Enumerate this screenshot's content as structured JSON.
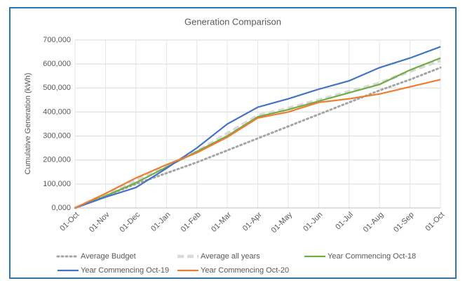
{
  "chart_data": {
    "type": "line",
    "title": "Generation Comparison",
    "y_label": "Cumulative Generation (kWh)",
    "categories": [
      "01-Oct",
      "01-Nov",
      "01-Dec",
      "01-Jan",
      "01-Feb",
      "01-Mar",
      "01-Apr",
      "01-May",
      "01-Jun",
      "01-Jul",
      "01-Aug",
      "01-Sep",
      "01-Oct"
    ],
    "ylim": [
      0,
      700000
    ],
    "yticks": [
      {
        "value": 0,
        "label": "0,000"
      },
      {
        "value": 100000,
        "label": "100,000"
      },
      {
        "value": 200000,
        "label": "200,000"
      },
      {
        "value": 300000,
        "label": "300,000"
      },
      {
        "value": 400000,
        "label": "400,000"
      },
      {
        "value": 500000,
        "label": "500,000"
      },
      {
        "value": 600000,
        "label": "600,000"
      },
      {
        "value": 700000,
        "label": "700,000"
      }
    ],
    "grid": true,
    "legend": "bottom",
    "series": [
      {
        "name": "Average Budget",
        "color": "#a5a5a5",
        "dash": "dot",
        "values": [
          0,
          50000,
          100000,
          145000,
          190000,
          240000,
          290000,
          340000,
          390000,
          440000,
          490000,
          535000,
          585000
        ]
      },
      {
        "name": "Average all years",
        "color": "#d9d9d9",
        "dash": "dash",
        "values": [
          0,
          55000,
          115000,
          175000,
          235000,
          310000,
          385000,
          415000,
          450000,
          485000,
          520000,
          570000,
          615000
        ]
      },
      {
        "name": "Year Commencing Oct-18",
        "color": "#70ad47",
        "dash": "solid",
        "values": [
          0,
          50000,
          105000,
          170000,
          235000,
          300000,
          380000,
          410000,
          445000,
          480000,
          515000,
          575000,
          625000
        ]
      },
      {
        "name": "Year Commencing Oct-19",
        "color": "#4472c4",
        "dash": "solid",
        "values": [
          0,
          45000,
          85000,
          165000,
          250000,
          350000,
          420000,
          455000,
          495000,
          530000,
          585000,
          625000,
          672000
        ]
      },
      {
        "name": "Year Commencing Oct-20",
        "color": "#ed7d31",
        "dash": "solid",
        "values": [
          0,
          60000,
          125000,
          180000,
          230000,
          295000,
          375000,
          400000,
          440000,
          455000,
          475000,
          505000,
          535000
        ]
      }
    ]
  }
}
